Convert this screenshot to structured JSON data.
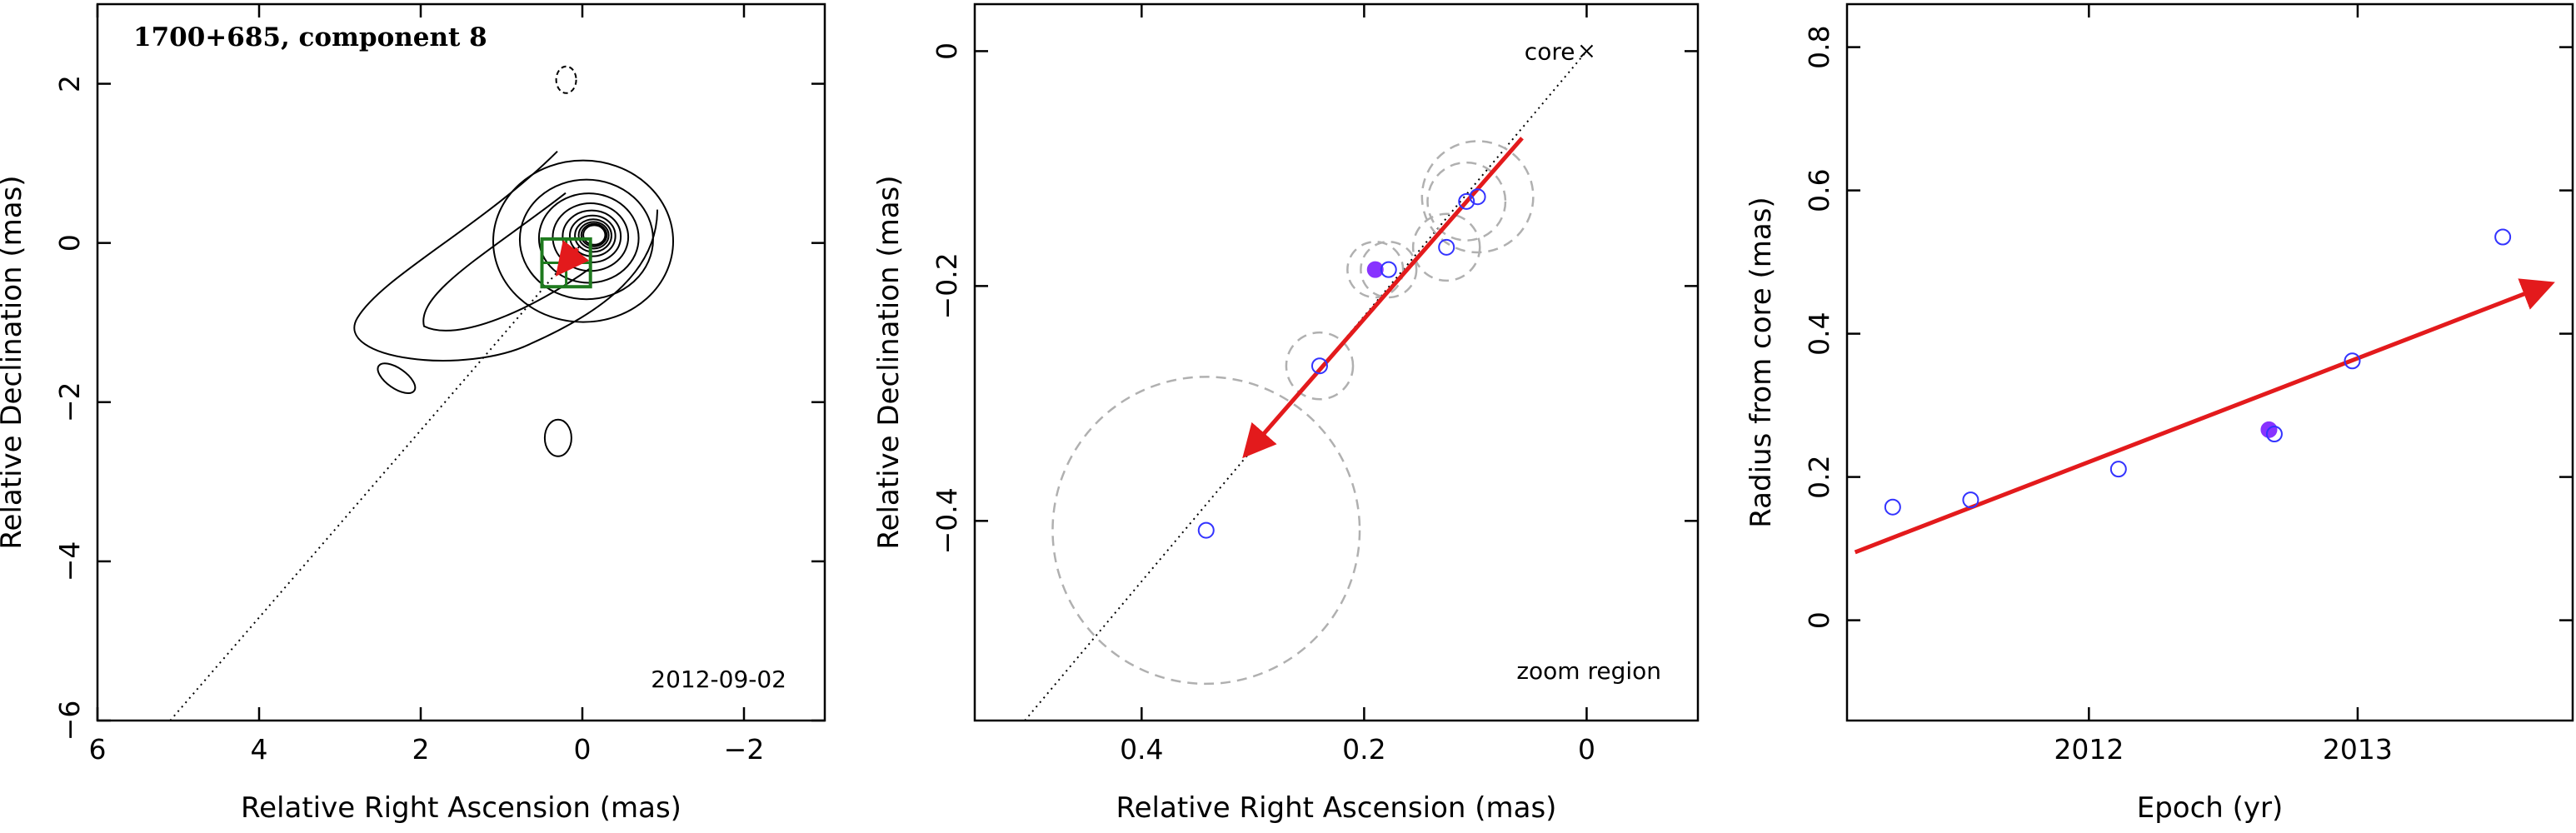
{
  "chart_data": [
    {
      "type": "contour",
      "title": "1700+685, component 8",
      "annotation": "2012-09-02",
      "xlabel": "Relative Right Ascension (mas)",
      "ylabel": "Relative Declination (mas)",
      "xlim": [
        6,
        -3
      ],
      "ylim": [
        -6,
        3
      ],
      "xticks": [
        6,
        4,
        2,
        0,
        -2
      ],
      "yticks": [
        -6,
        -4,
        -2,
        0,
        2
      ],
      "xtick_labels": [
        "6",
        "4",
        "2",
        "0",
        "−2"
      ],
      "ytick_labels": [
        "−6",
        "−4",
        "−2",
        "0",
        "2"
      ],
      "core": [
        0,
        0
      ],
      "contour_levels": 10,
      "zoom_box": {
        "x": [
          0.5,
          -0.1
        ],
        "y": [
          -0.55,
          0.05
        ]
      },
      "trajectory_line": {
        "from": [
          5.1,
          -6.0
        ],
        "to": [
          0.0,
          0.0
        ]
      },
      "velocity_arrow": {
        "from": [
          0.06,
          -0.07
        ],
        "to": [
          0.3,
          -0.38
        ]
      },
      "colors": {
        "contour": "#000000",
        "zoom_box": "#1e7a1e",
        "arrow": "#e31a1c"
      }
    },
    {
      "type": "scatter",
      "annotations": [
        "core",
        "zoom region"
      ],
      "xlabel": "Relative Right Ascension (mas)",
      "ylabel": "Relative Declination (mas)",
      "xlim": [
        0.55,
        -0.1
      ],
      "ylim": [
        -0.57,
        0.04
      ],
      "xticks": [
        0.4,
        0.2,
        0.0
      ],
      "yticks": [
        -0.4,
        -0.2,
        0.0
      ],
      "xtick_labels": [
        "0.4",
        "0.2",
        "0"
      ],
      "ytick_labels": [
        "−0.4",
        "−0.2",
        "0"
      ],
      "core_marker": [
        0.0,
        0.0
      ],
      "points": [
        {
          "x": 0.342,
          "y": -0.408,
          "err": 0.138,
          "filled": false
        },
        {
          "x": 0.24,
          "y": -0.268,
          "err": 0.03,
          "filled": false
        },
        {
          "x": 0.19,
          "y": -0.186,
          "err": 0.025,
          "filled": true
        },
        {
          "x": 0.178,
          "y": -0.186,
          "err": 0.025,
          "filled": false
        },
        {
          "x": 0.126,
          "y": -0.167,
          "err": 0.03,
          "filled": false
        },
        {
          "x": 0.108,
          "y": -0.128,
          "err": 0.035,
          "filled": false
        },
        {
          "x": 0.098,
          "y": -0.124,
          "err": 0.05,
          "filled": false
        }
      ],
      "trajectory_line": {
        "from": [
          0.505,
          -0.57
        ],
        "to": [
          0.0,
          0.0
        ]
      },
      "velocity_arrow": {
        "from": [
          0.058,
          -0.074
        ],
        "to": [
          0.307,
          -0.344
        ]
      },
      "colors": {
        "point": "#3333ff",
        "filled_point": "#8833ff",
        "error_circle": "#b0b0b0",
        "arrow": "#e31a1c"
      }
    },
    {
      "type": "scatter",
      "xlabel": "Epoch (yr)",
      "ylabel": "Radius from core (mas)",
      "xlim": [
        2011.1,
        2013.8
      ],
      "ylim": [
        -0.14,
        0.86
      ],
      "xticks": [
        2012,
        2013
      ],
      "yticks": [
        0,
        0.2,
        0.4,
        0.6,
        0.8
      ],
      "xtick_labels": [
        "2012",
        "2013"
      ],
      "ytick_labels": [
        "0",
        "0.2",
        "0.4",
        "0.6",
        "0.8"
      ],
      "points": [
        {
          "x": 2011.27,
          "y": 0.158,
          "filled": false
        },
        {
          "x": 2011.56,
          "y": 0.168,
          "filled": false
        },
        {
          "x": 2012.11,
          "y": 0.211,
          "filled": false
        },
        {
          "x": 2012.67,
          "y": 0.266,
          "filled": true
        },
        {
          "x": 2012.69,
          "y": 0.26,
          "filled": false
        },
        {
          "x": 2012.98,
          "y": 0.362,
          "filled": false
        },
        {
          "x": 2013.54,
          "y": 0.535,
          "filled": false
        }
      ],
      "fit_arrow": {
        "from": [
          2011.13,
          0.095
        ],
        "to": [
          2013.72,
          0.47
        ]
      },
      "colors": {
        "point": "#3333ff",
        "filled_point": "#8833ff",
        "arrow": "#e31a1c"
      }
    }
  ]
}
